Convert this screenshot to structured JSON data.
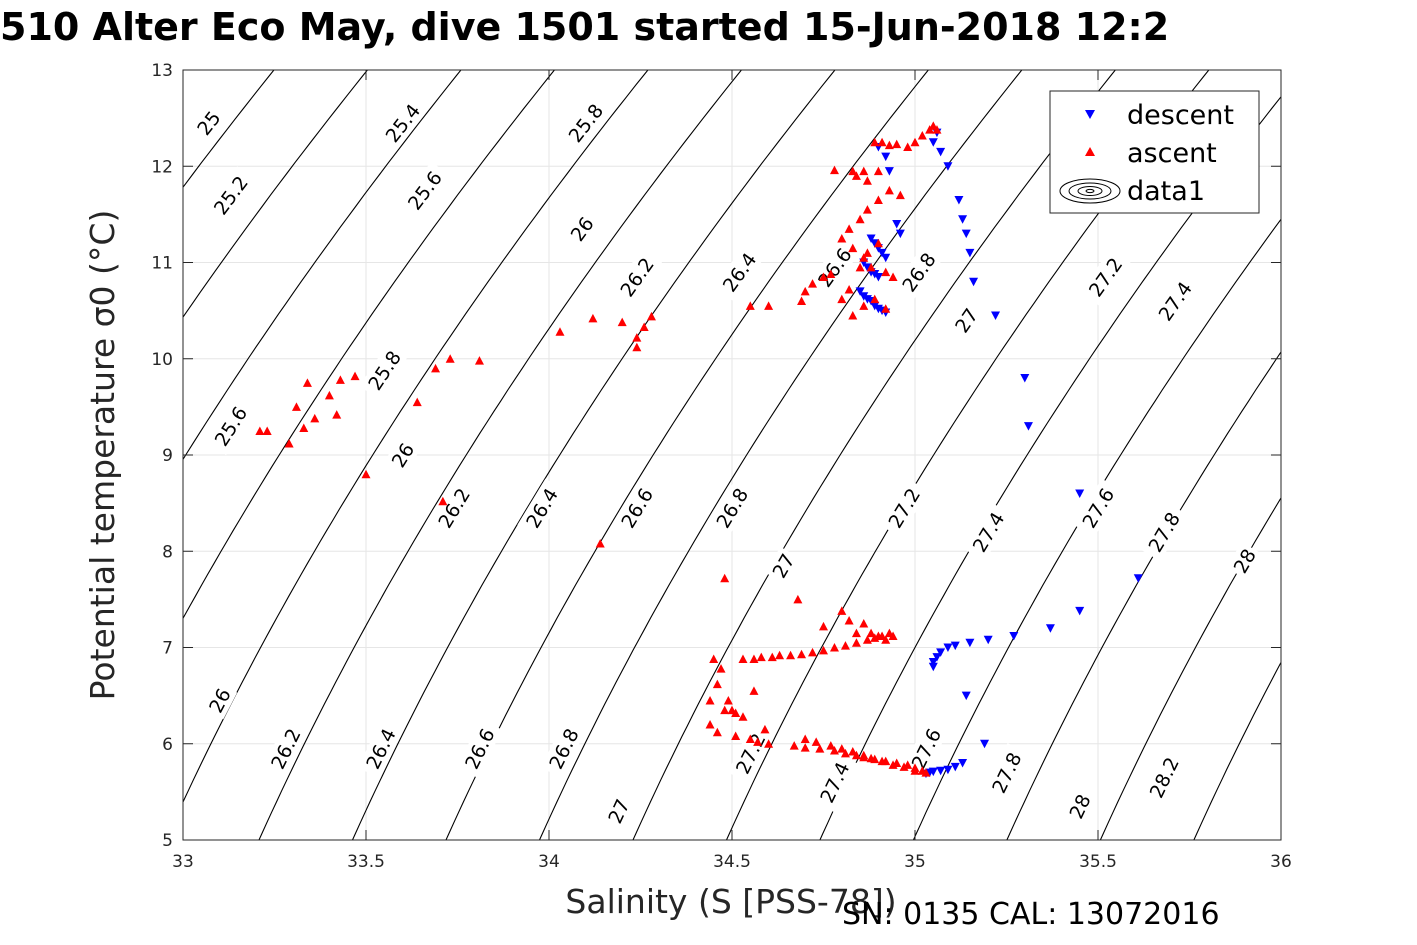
{
  "title": "510 Alter Eco May, dive 1501 started 15-Jun-2018 12:2",
  "footer": "SN: 0135  CAL: 13072016",
  "chart_data": {
    "type": "scatter",
    "title": "510 Alter Eco May, dive 1501 started 15-Jun-2018 12:2",
    "xlabel": "Salinity (S [PSS-78])",
    "ylabel": "Potential temperature σ0 (°C)",
    "xlim": [
      33,
      36
    ],
    "ylim": [
      5,
      13
    ],
    "xticks": [
      "33",
      "33.5",
      "34",
      "34.5",
      "35",
      "35.5",
      "36"
    ],
    "yticks": [
      "5",
      "6",
      "7",
      "8",
      "9",
      "10",
      "11",
      "12",
      "13"
    ],
    "grid": true,
    "legend_position": "top-right",
    "legend": [
      "descent",
      "ascent",
      "data1"
    ],
    "contour_levels": [
      25,
      25.2,
      25.4,
      25.6,
      25.8,
      26,
      26.2,
      26.4,
      26.6,
      26.8,
      27,
      27.2,
      27.4,
      27.6,
      27.8,
      28,
      28.2
    ],
    "contour_labels": [
      {
        "text": "25",
        "s": 33.07,
        "t": 12.45
      },
      {
        "text": "25.2",
        "s": 33.13,
        "t": 11.7
      },
      {
        "text": "25.4",
        "s": 33.6,
        "t": 12.45
      },
      {
        "text": "25.6",
        "s": 33.66,
        "t": 11.75
      },
      {
        "text": "25.8",
        "s": 34.1,
        "t": 12.45
      },
      {
        "text": "26",
        "s": 34.09,
        "t": 11.35
      },
      {
        "text": "26.2",
        "s": 34.24,
        "t": 10.85
      },
      {
        "text": "26.4",
        "s": 34.52,
        "t": 10.9
      },
      {
        "text": "26.6",
        "s": 34.78,
        "t": 10.95
      },
      {
        "text": "26.8",
        "s": 35.01,
        "t": 10.9
      },
      {
        "text": "27",
        "s": 35.14,
        "t": 10.4
      },
      {
        "text": "27.2",
        "s": 35.52,
        "t": 10.85
      },
      {
        "text": "27.4",
        "s": 35.71,
        "t": 10.6
      },
      {
        "text": "25.6",
        "s": 33.13,
        "t": 9.3
      },
      {
        "text": "25.8",
        "s": 33.55,
        "t": 9.88
      },
      {
        "text": "26",
        "s": 33.6,
        "t": 9.0
      },
      {
        "text": "26.2",
        "s": 33.74,
        "t": 8.45
      },
      {
        "text": "26.4",
        "s": 33.98,
        "t": 8.45
      },
      {
        "text": "26.6",
        "s": 34.24,
        "t": 8.45
      },
      {
        "text": "26.8",
        "s": 34.5,
        "t": 8.45
      },
      {
        "text": "27",
        "s": 34.64,
        "t": 7.85
      },
      {
        "text": "27.2",
        "s": 34.97,
        "t": 8.45
      },
      {
        "text": "27.4",
        "s": 35.2,
        "t": 8.2
      },
      {
        "text": "27.6",
        "s": 35.5,
        "t": 8.45
      },
      {
        "text": "27.8",
        "s": 35.68,
        "t": 8.2
      },
      {
        "text": "28",
        "s": 35.9,
        "t": 7.9
      },
      {
        "text": "26",
        "s": 33.1,
        "t": 6.45
      },
      {
        "text": "26.2",
        "s": 33.28,
        "t": 5.95
      },
      {
        "text": "26.4",
        "s": 33.54,
        "t": 5.95
      },
      {
        "text": "26.6",
        "s": 33.81,
        "t": 5.95
      },
      {
        "text": "26.8",
        "s": 34.04,
        "t": 5.95
      },
      {
        "text": "27",
        "s": 34.19,
        "t": 5.3
      },
      {
        "text": "27.2",
        "s": 34.55,
        "t": 5.9
      },
      {
        "text": "27.4",
        "s": 34.78,
        "t": 5.6
      },
      {
        "text": "27.6",
        "s": 35.03,
        "t": 5.95
      },
      {
        "text": "27.8",
        "s": 35.25,
        "t": 5.7
      },
      {
        "text": "28",
        "s": 35.45,
        "t": 5.35
      },
      {
        "text": "28.2",
        "s": 35.68,
        "t": 5.65
      }
    ],
    "series": [
      {
        "name": "descent",
        "color": "#0000ff",
        "marker": "triangle-down",
        "x": [
          35.06,
          35.05,
          35.07,
          35.09,
          35.12,
          35.13,
          35.14,
          35.15,
          35.16,
          35.22,
          35.3,
          35.31,
          35.45,
          35.61,
          35.45,
          35.37,
          35.27,
          35.2,
          35.15,
          35.11,
          35.09,
          35.07,
          35.06,
          35.05,
          35.05,
          35.14,
          35.19,
          35.13,
          35.11,
          35.09,
          35.07,
          35.05,
          35.04,
          35.03,
          34.9,
          34.92,
          34.93,
          34.95,
          34.96,
          34.88,
          34.89,
          34.9,
          34.91,
          34.92,
          34.86,
          34.87,
          34.88,
          34.89,
          34.9,
          34.85,
          34.86,
          34.87,
          34.88,
          34.89,
          34.9,
          34.91,
          34.92
        ],
        "y": [
          12.35,
          12.25,
          12.15,
          12.0,
          11.65,
          11.45,
          11.3,
          11.1,
          10.8,
          10.45,
          9.8,
          9.3,
          8.6,
          7.72,
          7.38,
          7.2,
          7.12,
          7.08,
          7.05,
          7.02,
          7.0,
          6.95,
          6.9,
          6.85,
          6.8,
          6.5,
          6.0,
          5.8,
          5.76,
          5.73,
          5.72,
          5.71,
          5.7,
          5.69,
          12.2,
          12.1,
          11.95,
          11.4,
          11.3,
          11.25,
          11.2,
          11.15,
          11.1,
          11.05,
          11.0,
          10.95,
          10.9,
          10.88,
          10.85,
          10.7,
          10.65,
          10.62,
          10.6,
          10.55,
          10.52,
          10.5,
          10.48
        ]
      },
      {
        "name": "ascent",
        "color": "#ff0000",
        "marker": "triangle-up",
        "x": [
          33.21,
          33.23,
          33.29,
          33.33,
          33.34,
          33.36,
          33.4,
          33.43,
          33.47,
          33.42,
          33.31,
          33.5,
          33.64,
          33.69,
          33.73,
          33.81,
          33.71,
          34.03,
          34.12,
          34.14,
          34.2,
          34.24,
          34.26,
          34.28,
          34.24,
          34.55,
          34.6,
          34.69,
          34.7,
          34.72,
          34.75,
          34.77,
          34.8,
          34.82,
          34.85,
          34.87,
          34.9,
          34.78,
          34.83,
          34.86,
          34.89,
          34.91,
          34.93,
          34.95,
          34.98,
          35.0,
          35.02,
          35.04,
          35.05,
          35.06,
          34.82,
          34.85,
          34.87,
          34.9,
          34.93,
          34.96,
          34.8,
          34.83,
          34.86,
          34.88,
          34.92,
          34.94,
          34.83,
          34.86,
          34.89,
          34.92,
          34.84,
          34.87,
          34.9,
          34.48,
          34.45,
          34.47,
          34.46,
          34.49,
          34.5,
          34.51,
          34.53,
          34.56,
          34.58,
          34.61,
          34.63,
          34.66,
          34.69,
          34.72,
          34.75,
          34.78,
          34.81,
          34.84,
          34.87,
          34.89,
          34.91,
          34.93,
          34.94,
          34.92,
          34.9,
          34.88,
          34.86,
          34.84,
          34.82,
          34.8,
          34.75,
          34.68,
          34.56,
          34.59,
          34.53,
          34.48,
          34.44,
          34.44,
          34.46,
          34.51,
          34.55,
          34.57,
          34.6,
          34.67,
          34.7,
          34.74,
          34.78,
          34.81,
          34.84,
          34.86,
          34.89,
          34.92,
          34.95,
          34.98,
          35.0,
          35.02,
          35.03,
          34.7,
          34.73,
          34.77,
          34.8,
          34.83,
          34.86,
          34.88,
          34.91,
          34.94,
          34.97,
          35.0
        ],
        "y": [
          9.25,
          9.25,
          9.12,
          9.28,
          9.75,
          9.38,
          9.62,
          9.78,
          9.82,
          9.42,
          9.5,
          8.8,
          9.55,
          9.9,
          10.0,
          9.98,
          8.52,
          10.28,
          10.42,
          8.08,
          10.38,
          10.12,
          10.33,
          10.44,
          10.22,
          10.55,
          10.55,
          10.6,
          10.7,
          10.78,
          10.85,
          10.88,
          10.62,
          10.72,
          10.95,
          11.1,
          11.2,
          11.96,
          11.95,
          11.95,
          12.25,
          12.25,
          12.22,
          12.23,
          12.2,
          12.25,
          12.32,
          12.38,
          12.42,
          12.38,
          11.35,
          11.45,
          11.55,
          11.65,
          11.75,
          11.7,
          11.25,
          11.15,
          11.05,
          10.95,
          10.9,
          10.85,
          10.45,
          10.55,
          10.62,
          10.52,
          11.9,
          11.85,
          11.95,
          7.72,
          6.88,
          6.78,
          6.62,
          6.45,
          6.35,
          6.32,
          6.88,
          6.88,
          6.9,
          6.9,
          6.92,
          6.92,
          6.93,
          6.95,
          6.97,
          7.0,
          7.02,
          7.05,
          7.08,
          7.1,
          7.12,
          7.15,
          7.12,
          7.08,
          7.12,
          7.15,
          7.25,
          7.15,
          7.28,
          7.38,
          7.22,
          7.5,
          6.55,
          6.15,
          6.28,
          6.35,
          6.45,
          6.2,
          6.12,
          6.08,
          6.05,
          6.02,
          6.0,
          5.98,
          5.96,
          5.95,
          5.93,
          5.9,
          5.88,
          5.86,
          5.84,
          5.82,
          5.8,
          5.78,
          5.75,
          5.72,
          5.7,
          6.05,
          6.02,
          5.98,
          5.95,
          5.92,
          5.88,
          5.85,
          5.82,
          5.78,
          5.76,
          5.72
        ]
      }
    ]
  }
}
